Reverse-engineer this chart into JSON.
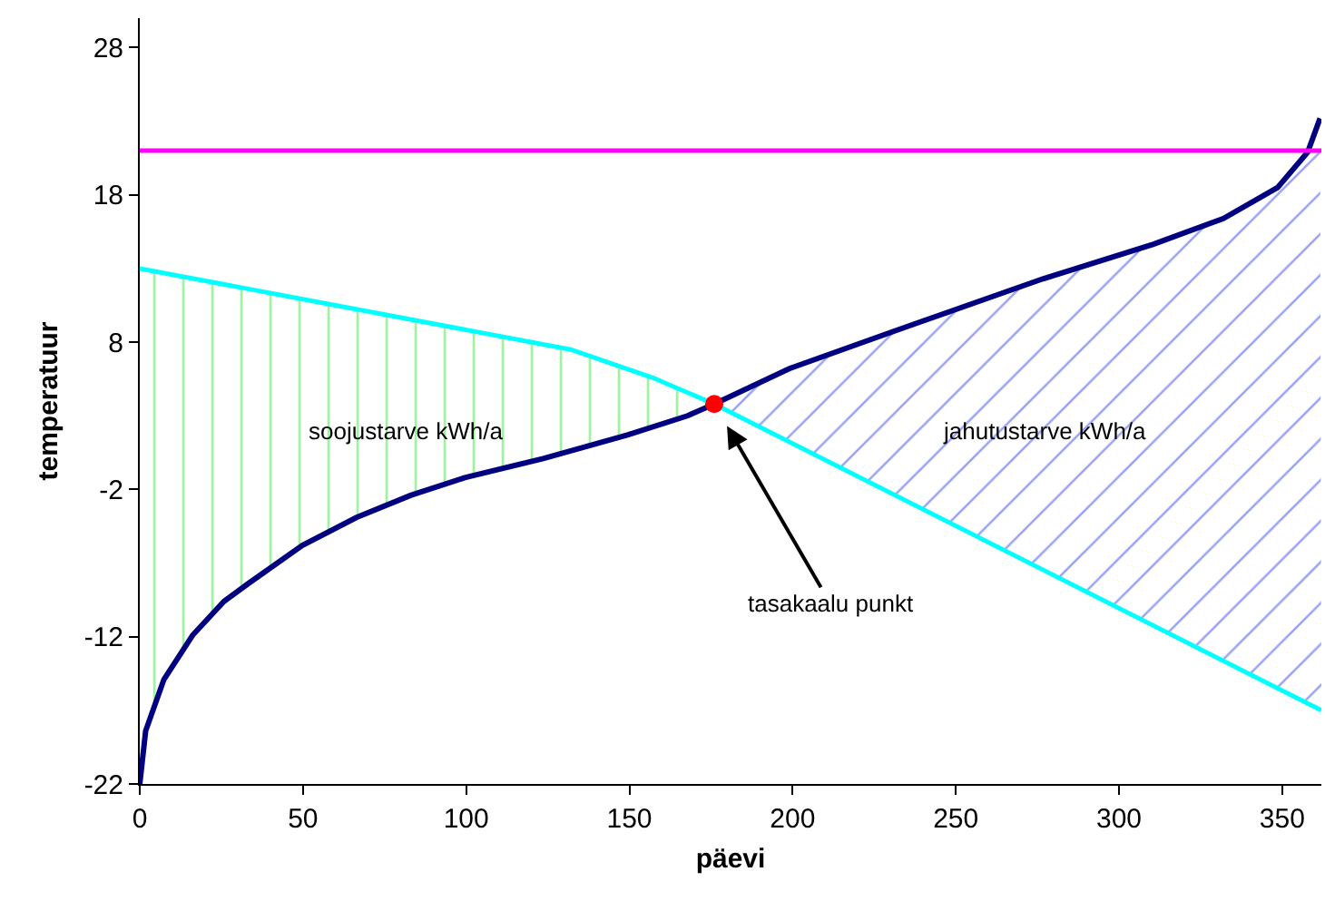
{
  "chart_data": {
    "type": "line",
    "xlabel": "päevi",
    "ylabel": "temperatuur",
    "xlim": [
      0,
      362
    ],
    "ylim": [
      -22,
      30
    ],
    "xticks": [
      0,
      50,
      100,
      150,
      200,
      250,
      300,
      350
    ],
    "yticks": [
      -22,
      -12,
      -2,
      8,
      18,
      28
    ],
    "line_style": "solid",
    "series": [
      {
        "color": "#000080",
        "marker": "none",
        "x": [
          0,
          1.8,
          7.4,
          16.2,
          25.8,
          33.2,
          49.8,
          66.4,
          83,
          99.6,
          123.6,
          149.4,
          167.8,
          176,
          199,
          230.5,
          276.7,
          309.9,
          332,
          348.6,
          357.8,
          361.6
        ],
        "values": [
          -22,
          -18.4,
          -14.9,
          -11.9,
          -9.6,
          -8.4,
          -5.8,
          -3.9,
          -2.4,
          -1.2,
          0.1,
          1.7,
          3.0,
          3.8,
          6.2,
          8.7,
          12.3,
          14.6,
          16.4,
          18.5,
          20.9,
          23.2
        ]
      },
      {
        "color": "#00ffff",
        "marker": "none",
        "x": [
          0,
          132,
          157,
          176,
          362
        ],
        "values": [
          13,
          7.5,
          5.6,
          3.8,
          -17
        ]
      },
      {
        "type": "scatter",
        "color": "#ff0000",
        "marker": "circle",
        "x": [
          176
        ],
        "values": [
          3.8
        ]
      }
    ],
    "ref_lines": [
      {
        "axis": "y",
        "value": 21,
        "color": "#ff00ff",
        "line_style": "solid"
      }
    ],
    "annotations": [
      "soojustarve kWh/a",
      "jahutustarve kWh/a",
      {
        "text": "tasakaalu punkt",
        "x": 176,
        "y": 3.8
      }
    ]
  }
}
